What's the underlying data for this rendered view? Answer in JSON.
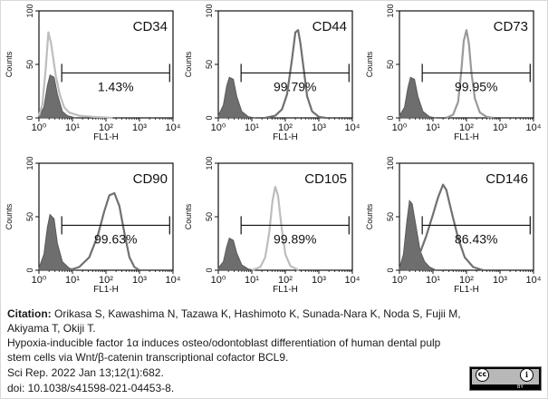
{
  "chart_data": [
    {
      "type": "area",
      "title": "CD34",
      "percent": "1.43%",
      "xlabel": "FL1-H",
      "ylabel": "Counts",
      "x_ticks": [
        "10⁰",
        "10¹",
        "10²",
        "10³",
        "10⁴"
      ],
      "y_ticks": [
        "0",
        "50",
        "100"
      ],
      "xlim_log10": [
        0,
        4
      ],
      "ylim": [
        0,
        100
      ],
      "gate": {
        "start": 0.68,
        "end": 3.9
      },
      "series": [
        {
          "role": "control",
          "color": "#5a5a5a",
          "fill": "#6e6e6e",
          "points": [
            [
              0,
              2
            ],
            [
              0.15,
              10
            ],
            [
              0.25,
              30
            ],
            [
              0.33,
              40
            ],
            [
              0.45,
              38
            ],
            [
              0.55,
              22
            ],
            [
              0.7,
              6
            ],
            [
              0.85,
              2
            ],
            [
              1.1,
              0
            ]
          ]
        },
        {
          "role": "sample",
          "color": "#bdbdbd",
          "fill": "none",
          "points": [
            [
              0,
              2
            ],
            [
              0.1,
              12
            ],
            [
              0.2,
              45
            ],
            [
              0.28,
              80
            ],
            [
              0.36,
              70
            ],
            [
              0.5,
              40
            ],
            [
              0.62,
              22
            ],
            [
              0.75,
              10
            ],
            [
              0.9,
              5
            ],
            [
              1.2,
              2
            ],
            [
              1.6,
              1
            ],
            [
              2.2,
              0
            ]
          ]
        }
      ]
    },
    {
      "type": "area",
      "title": "CD44",
      "percent": "99.79%",
      "xlabel": "FL1-H",
      "ylabel": "Counts",
      "x_ticks": [
        "10⁰",
        "10¹",
        "10²",
        "10³",
        "10⁴"
      ],
      "y_ticks": [
        "0",
        "50",
        "100"
      ],
      "xlim_log10": [
        0,
        4
      ],
      "ylim": [
        0,
        100
      ],
      "gate": {
        "start": 0.68,
        "end": 3.9
      },
      "series": [
        {
          "role": "control",
          "color": "#5a5a5a",
          "fill": "#6e6e6e",
          "points": [
            [
              0,
              2
            ],
            [
              0.15,
              12
            ],
            [
              0.25,
              30
            ],
            [
              0.33,
              38
            ],
            [
              0.45,
              36
            ],
            [
              0.55,
              20
            ],
            [
              0.7,
              6
            ],
            [
              0.9,
              1
            ],
            [
              1.1,
              0
            ]
          ]
        },
        {
          "role": "sample",
          "color": "#707070",
          "fill": "none",
          "points": [
            [
              1.4,
              0
            ],
            [
              1.7,
              2
            ],
            [
              1.9,
              8
            ],
            [
              2.05,
              22
            ],
            [
              2.2,
              55
            ],
            [
              2.3,
              80
            ],
            [
              2.38,
              82
            ],
            [
              2.45,
              70
            ],
            [
              2.55,
              45
            ],
            [
              2.65,
              20
            ],
            [
              2.8,
              6
            ],
            [
              3.0,
              1
            ],
            [
              3.2,
              0
            ]
          ]
        }
      ]
    },
    {
      "type": "area",
      "title": "CD73",
      "percent": "99.95%",
      "xlabel": "FL1-H",
      "ylabel": "Counts",
      "x_ticks": [
        "10⁰",
        "10¹",
        "10²",
        "10³",
        "10⁴"
      ],
      "y_ticks": [
        "0",
        "50",
        "100"
      ],
      "xlim_log10": [
        0,
        4
      ],
      "ylim": [
        0,
        100
      ],
      "gate": {
        "start": 0.68,
        "end": 3.9
      },
      "series": [
        {
          "role": "control",
          "color": "#5a5a5a",
          "fill": "#6e6e6e",
          "points": [
            [
              0,
              2
            ],
            [
              0.15,
              10
            ],
            [
              0.25,
              28
            ],
            [
              0.33,
              38
            ],
            [
              0.45,
              36
            ],
            [
              0.55,
              20
            ],
            [
              0.7,
              6
            ],
            [
              0.9,
              1
            ],
            [
              1.1,
              0
            ]
          ]
        },
        {
          "role": "sample",
          "color": "#9a9a9a",
          "fill": "none",
          "points": [
            [
              1.4,
              0
            ],
            [
              1.6,
              3
            ],
            [
              1.75,
              15
            ],
            [
              1.85,
              45
            ],
            [
              1.92,
              72
            ],
            [
              2.0,
              82
            ],
            [
              2.07,
              70
            ],
            [
              2.15,
              42
            ],
            [
              2.25,
              18
            ],
            [
              2.4,
              5
            ],
            [
              2.6,
              1
            ],
            [
              2.8,
              0
            ]
          ]
        }
      ]
    },
    {
      "type": "area",
      "title": "CD90",
      "percent": "99.63%",
      "xlabel": "FL1-H",
      "ylabel": "Counts",
      "x_ticks": [
        "10⁰",
        "10¹",
        "10²",
        "10³",
        "10⁴"
      ],
      "y_ticks": [
        "0",
        "50",
        "100"
      ],
      "xlim_log10": [
        0,
        4
      ],
      "ylim": [
        0,
        100
      ],
      "gate": {
        "start": 0.68,
        "end": 3.9
      },
      "series": [
        {
          "role": "control",
          "color": "#5a5a5a",
          "fill": "#6e6e6e",
          "points": [
            [
              0,
              2
            ],
            [
              0.15,
              15
            ],
            [
              0.25,
              40
            ],
            [
              0.33,
              52
            ],
            [
              0.45,
              48
            ],
            [
              0.55,
              25
            ],
            [
              0.7,
              8
            ],
            [
              0.9,
              2
            ],
            [
              1.1,
              0
            ]
          ]
        },
        {
          "role": "sample",
          "color": "#707070",
          "fill": "none",
          "points": [
            [
              0.9,
              0
            ],
            [
              1.2,
              3
            ],
            [
              1.5,
              12
            ],
            [
              1.75,
              32
            ],
            [
              1.95,
              55
            ],
            [
              2.1,
              70
            ],
            [
              2.25,
              72
            ],
            [
              2.4,
              60
            ],
            [
              2.55,
              35
            ],
            [
              2.7,
              12
            ],
            [
              2.85,
              3
            ],
            [
              3.0,
              0
            ]
          ]
        }
      ]
    },
    {
      "type": "area",
      "title": "CD105",
      "percent": "99.89%",
      "xlabel": "FL1-H",
      "ylabel": "Counts",
      "x_ticks": [
        "10⁰",
        "10¹",
        "10²",
        "10³",
        "10⁴"
      ],
      "y_ticks": [
        "0",
        "50",
        "100"
      ],
      "xlim_log10": [
        0,
        4
      ],
      "ylim": [
        0,
        100
      ],
      "gate": {
        "start": 0.68,
        "end": 3.9
      },
      "series": [
        {
          "role": "control",
          "color": "#5a5a5a",
          "fill": "#6e6e6e",
          "points": [
            [
              0,
              2
            ],
            [
              0.15,
              8
            ],
            [
              0.25,
              22
            ],
            [
              0.33,
              30
            ],
            [
              0.45,
              28
            ],
            [
              0.55,
              16
            ],
            [
              0.7,
              5
            ],
            [
              0.9,
              1
            ],
            [
              1.1,
              0
            ]
          ]
        },
        {
          "role": "sample",
          "color": "#bdbdbd",
          "fill": "none",
          "points": [
            [
              1.0,
              0
            ],
            [
              1.25,
              3
            ],
            [
              1.4,
              12
            ],
            [
              1.52,
              35
            ],
            [
              1.62,
              65
            ],
            [
              1.7,
              78
            ],
            [
              1.78,
              70
            ],
            [
              1.88,
              42
            ],
            [
              2.0,
              15
            ],
            [
              2.15,
              4
            ],
            [
              2.4,
              0
            ]
          ]
        }
      ]
    },
    {
      "type": "area",
      "title": "CD146",
      "percent": "86.43%",
      "xlabel": "FL1-H",
      "ylabel": "Counts",
      "x_ticks": [
        "10⁰",
        "10¹",
        "10²",
        "10³",
        "10⁴"
      ],
      "y_ticks": [
        "0",
        "50",
        "100"
      ],
      "xlim_log10": [
        0,
        4
      ],
      "ylim": [
        0,
        100
      ],
      "gate": {
        "start": 0.68,
        "end": 3.9
      },
      "series": [
        {
          "role": "control",
          "color": "#5a5a5a",
          "fill": "#6e6e6e",
          "points": [
            [
              0,
              2
            ],
            [
              0.12,
              15
            ],
            [
              0.22,
              45
            ],
            [
              0.3,
              65
            ],
            [
              0.38,
              62
            ],
            [
              0.5,
              40
            ],
            [
              0.62,
              18
            ],
            [
              0.75,
              8
            ],
            [
              0.9,
              3
            ],
            [
              1.1,
              0
            ]
          ]
        },
        {
          "role": "sample",
          "color": "#707070",
          "fill": "none",
          "points": [
            [
              0.2,
              0
            ],
            [
              0.4,
              6
            ],
            [
              0.6,
              15
            ],
            [
              0.8,
              32
            ],
            [
              1.0,
              52
            ],
            [
              1.15,
              68
            ],
            [
              1.3,
              80
            ],
            [
              1.4,
              75
            ],
            [
              1.55,
              55
            ],
            [
              1.75,
              30
            ],
            [
              1.95,
              12
            ],
            [
              2.2,
              3
            ],
            [
              2.5,
              0
            ]
          ]
        }
      ]
    }
  ],
  "caption": {
    "citation_label": "Citation:",
    "authors_line1": " Orikasa S, Kawashima N, Tazawa K, Hashimoto K, Sunada-Nara K, Noda S, Fujii M,",
    "authors_line2": "Akiyama T, Okiji T.",
    "title_line1": "Hypoxia-inducible factor 1α induces osteo/odontoblast differentiation of human dental pulp",
    "title_line2": "stem cells via Wnt/β-catenin transcriptional cofactor BCL9.",
    "journal": "Sci Rep. 2022 Jan 13;12(1):682.",
    "doi": "doi: 10.1038/s41598-021-04453-8."
  },
  "license": {
    "cc_symbol": "cc",
    "by_symbol": "i",
    "by_text": "BY"
  }
}
